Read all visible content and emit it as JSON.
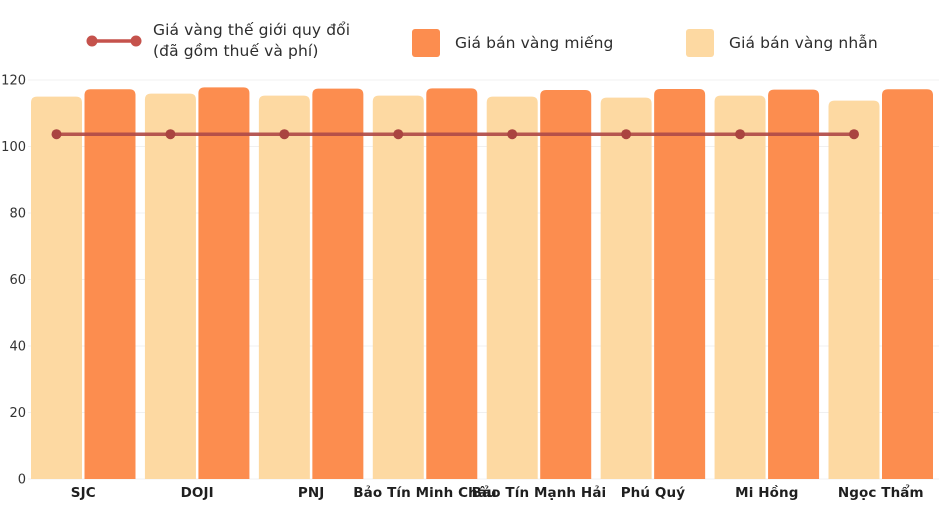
{
  "legend": {
    "world_line": {
      "label_line1": "Giá vàng thế giới quy đổi",
      "label_line2": "(đã gồm thuế và phí)"
    },
    "mieng": {
      "label": "Giá bán vàng miếng"
    },
    "nhan": {
      "label": "Giá bán vàng nhẫn"
    }
  },
  "colors": {
    "bar_mieng": "#FC8D4F",
    "bar_nhan": "#FDD9A2",
    "line_world": "#B04B48",
    "line_dot": "#AA4440",
    "legend_marker": "#C5524C",
    "grid": "#F0F0F0",
    "y_axis_text": "#333333",
    "x_axis_text": "#1F1F1F"
  },
  "chart_data": {
    "type": "bar",
    "title": "",
    "xlabel": "",
    "ylabel": "",
    "categories": [
      "SJC",
      "DOJI",
      "PNJ",
      "Bảo Tín Minh Châu",
      "Bảo Tín Mạnh Hải",
      "Phú Quý",
      "Mi Hồng",
      "Ngọc Thẩm"
    ],
    "series": [
      {
        "name": "Giá bán vàng nhẫn",
        "role": "bar",
        "color": "#FDD9A2",
        "values": [
          115.0,
          115.9,
          115.3,
          115.3,
          115.0,
          114.7,
          115.3,
          113.8
        ]
      },
      {
        "name": "Giá bán vàng miếng",
        "role": "bar",
        "color": "#FC8D4F",
        "values": [
          117.2,
          117.8,
          117.4,
          117.5,
          117.0,
          117.3,
          117.1,
          117.2
        ]
      },
      {
        "name": "Giá vàng thế giới quy đổi (đã gồm thuế và phí)",
        "role": "line",
        "color": "#B04B48",
        "values": [
          103.7,
          103.7,
          103.7,
          103.7,
          103.7,
          103.7,
          103.7,
          103.7
        ]
      }
    ],
    "ylim": [
      0,
      120
    ],
    "yticks": [
      0,
      20,
      40,
      60,
      80,
      100,
      120
    ],
    "grid": true,
    "legend_position": "top"
  }
}
